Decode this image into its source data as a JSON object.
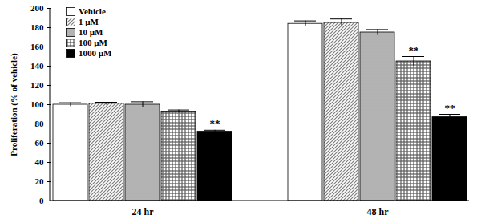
{
  "chart_data": {
    "type": "bar",
    "categories": [
      "24 hr",
      "48 hr"
    ],
    "y_label": "Proliferation (% of vehicle)",
    "ylim": [
      0,
      200
    ],
    "yticks": [
      0,
      20,
      40,
      60,
      80,
      100,
      120,
      140,
      160,
      180,
      200
    ],
    "grid": false,
    "legend": "top-left",
    "series": [
      {
        "name": "Vehicle",
        "color": "#ffffff",
        "values": [
          100,
          184
        ],
        "errors": [
          2,
          3
        ],
        "significance": [
          null,
          null
        ]
      },
      {
        "name": "1 µM",
        "color": "#7f7f7f",
        "values": [
          101,
          185
        ],
        "errors": [
          1.5,
          4
        ],
        "significance": [
          null,
          null
        ]
      },
      {
        "name": "10 µM",
        "color": "#7f7f7f",
        "values": [
          100,
          175
        ],
        "errors": [
          3,
          3
        ],
        "significance": [
          null,
          null
        ]
      },
      {
        "name": "100 µM",
        "color": "#595959",
        "values": [
          93,
          145
        ],
        "errors": [
          1.5,
          5
        ],
        "significance": [
          null,
          "**"
        ]
      },
      {
        "name": "1000 µM",
        "color": "#000000",
        "values": [
          72,
          87
        ],
        "errors": [
          1.5,
          3
        ],
        "significance": [
          "**",
          "**"
        ]
      }
    ]
  }
}
